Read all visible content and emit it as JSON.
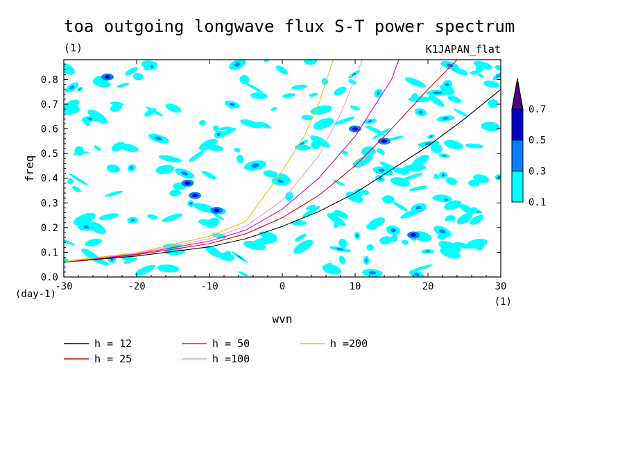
{
  "chart_data": {
    "type": "contour",
    "title": "toa outgoing longwave flux S-T power spectrum",
    "title_unit": "(1)",
    "dataset_label": "K1JAPAN_flat",
    "xlabel": "wvn",
    "ylabel": "freq",
    "x_unit": "(1)",
    "y_unit": "(day-1)",
    "xlim": [
      -30,
      30
    ],
    "ylim": [
      0,
      0.88
    ],
    "x_ticks": [
      -30,
      -20,
      -10,
      0,
      10,
      20,
      30
    ],
    "y_ticks": [
      0.0,
      0.1,
      0.2,
      0.3,
      0.4,
      0.5,
      0.6,
      0.7,
      0.8
    ],
    "x_tick_labels": [
      "-30",
      "-20",
      "-10",
      "0",
      "10",
      "20",
      "30"
    ],
    "y_tick_labels": [
      "0.0",
      "0.1",
      "0.2",
      "0.3",
      "0.4",
      "0.5",
      "0.6",
      "0.7",
      "0.8"
    ],
    "contour_levels": [
      0.1,
      0.3,
      0.5,
      0.7
    ],
    "level_labels": [
      "0.1",
      "0.3",
      "0.5",
      "0.7"
    ],
    "fill_colors": [
      "#00ffff",
      "#0080ff",
      "#0000c0",
      "#4b0082"
    ],
    "dispersion_curves": [
      {
        "name": "h = 12",
        "color": "#000000",
        "x": [
          -30,
          -20,
          -10,
          -5,
          0,
          5,
          10,
          15,
          20,
          25,
          30
        ],
        "y": [
          0.06,
          0.085,
          0.122,
          0.155,
          0.205,
          0.265,
          0.34,
          0.435,
          0.53,
          0.64,
          0.76
        ]
      },
      {
        "name": "h = 25",
        "color": "#e00000",
        "x": [
          -30,
          -20,
          -10,
          -5,
          0,
          5,
          10,
          15,
          20,
          24
        ],
        "y": [
          0.06,
          0.09,
          0.135,
          0.175,
          0.24,
          0.33,
          0.45,
          0.6,
          0.76,
          0.88
        ]
      },
      {
        "name": "h = 50",
        "color": "#e000b0",
        "x": [
          -30,
          -20,
          -10,
          -5,
          0,
          5,
          10,
          15,
          16
        ],
        "y": [
          0.062,
          0.093,
          0.145,
          0.19,
          0.275,
          0.4,
          0.57,
          0.8,
          0.88
        ]
      },
      {
        "name": "h =100",
        "color": "#d8a0e8",
        "x": [
          -30,
          -20,
          -10,
          -5,
          0,
          5,
          8,
          11
        ],
        "y": [
          0.062,
          0.096,
          0.155,
          0.205,
          0.31,
          0.49,
          0.66,
          0.88
        ]
      },
      {
        "name": "h =200",
        "color": "#f0c000",
        "x": [
          -30,
          -20,
          -10,
          -5,
          0,
          3,
          5,
          7
        ],
        "y": [
          0.063,
          0.098,
          0.165,
          0.225,
          0.43,
          0.57,
          0.7,
          0.88
        ]
      }
    ],
    "legend_placement": "bottom",
    "grid": false
  }
}
